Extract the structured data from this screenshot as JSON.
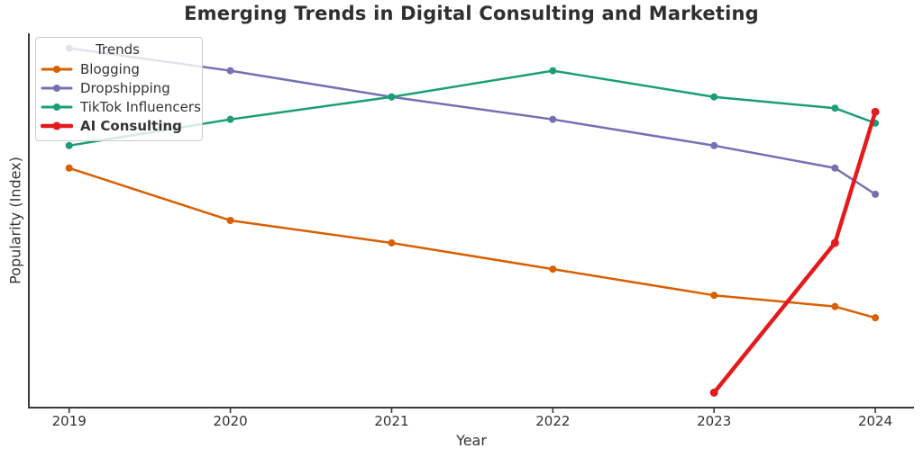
{
  "title": "Emerging Trends in Digital Consulting and Marketing",
  "legend": {
    "title": "Trends",
    "position": "upper left",
    "items": [
      "Blogging",
      "Dropshipping",
      "TikTok Influencers",
      "AI Consulting"
    ]
  },
  "colors": {
    "blogging": "#d95f02",
    "dropshipping": "#7570b3",
    "tiktok_influencers": "#1b9e77",
    "ai_consulting": "#e41a1c",
    "axis": "#3a3a3a",
    "text": "#333333",
    "legend_border": "#cccccc"
  },
  "chart_data": {
    "type": "line",
    "title": "Emerging Trends in Digital Consulting and Marketing",
    "xlabel": "Year",
    "ylabel": "Popularity (Index)",
    "x_tick_values": [
      2019,
      2020,
      2021,
      2022,
      2023,
      2024
    ],
    "x_tick_labels": [
      "2019",
      "2020",
      "2021",
      "2022",
      "2023",
      "2024"
    ],
    "xlim": [
      2018.75,
      2024.24
    ],
    "ylim": [
      0,
      100
    ],
    "y_ticks_shown": false,
    "grid": false,
    "spines": [
      "left",
      "bottom"
    ],
    "legend_title": "Trends",
    "legend_position": "upper left",
    "series": [
      {
        "name": "Blogging",
        "color": "#d95f02",
        "line_width": 2.5,
        "marker": "circle",
        "bold_in_legend": false,
        "x": [
          2019,
          2020,
          2021,
          2022,
          2023,
          2023.75,
          2024
        ],
        "values": [
          64,
          50,
          44,
          37,
          30,
          27,
          24
        ]
      },
      {
        "name": "Dropshipping",
        "color": "#7570b3",
        "line_width": 2.5,
        "marker": "circle",
        "bold_in_legend": false,
        "x": [
          2019,
          2020,
          2021,
          2022,
          2023,
          2023.75,
          2024
        ],
        "values": [
          96,
          90,
          83,
          77,
          70,
          64,
          57
        ]
      },
      {
        "name": "TikTok Influencers",
        "color": "#1b9e77",
        "line_width": 2.5,
        "marker": "circle",
        "bold_in_legend": false,
        "x": [
          2019,
          2020,
          2021,
          2022,
          2023,
          2023.75,
          2024
        ],
        "values": [
          70,
          77,
          83,
          90,
          83,
          80,
          76
        ]
      },
      {
        "name": "AI Consulting",
        "color": "#e41a1c",
        "line_width": 4.5,
        "marker": "circle",
        "bold_in_legend": true,
        "x": [
          2023,
          2023.75,
          2024
        ],
        "values": [
          4,
          44,
          79
        ]
      }
    ]
  }
}
